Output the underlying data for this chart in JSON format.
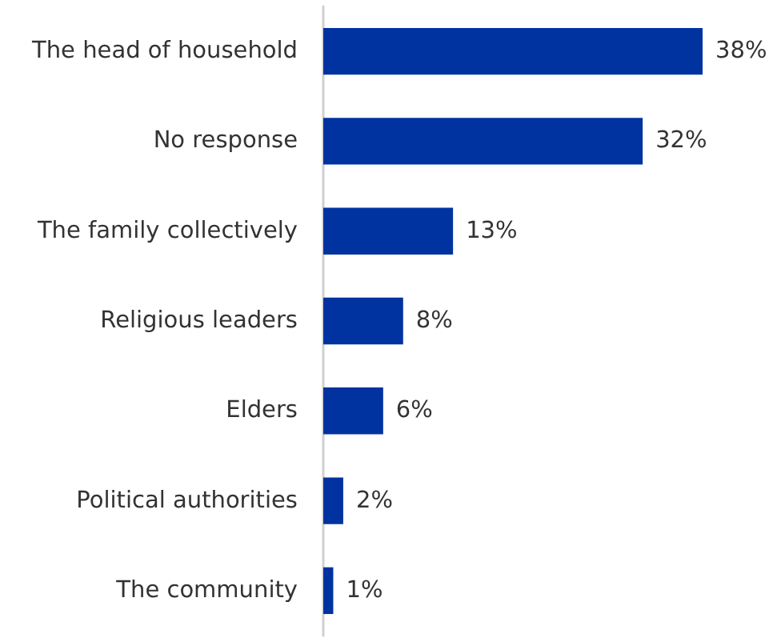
{
  "chart_data": {
    "type": "bar",
    "orientation": "horizontal",
    "categories": [
      "The head of household",
      "No response",
      "The family collectively",
      "Religious leaders",
      "Elders",
      "Political authorities",
      "The community"
    ],
    "values": [
      38,
      32,
      13,
      8,
      6,
      2,
      1
    ],
    "value_labels": [
      "38%",
      "32%",
      "13%",
      "8%",
      "6%",
      "2%",
      "1%"
    ],
    "color": "#0033a0",
    "tick_labels": "y"
  }
}
